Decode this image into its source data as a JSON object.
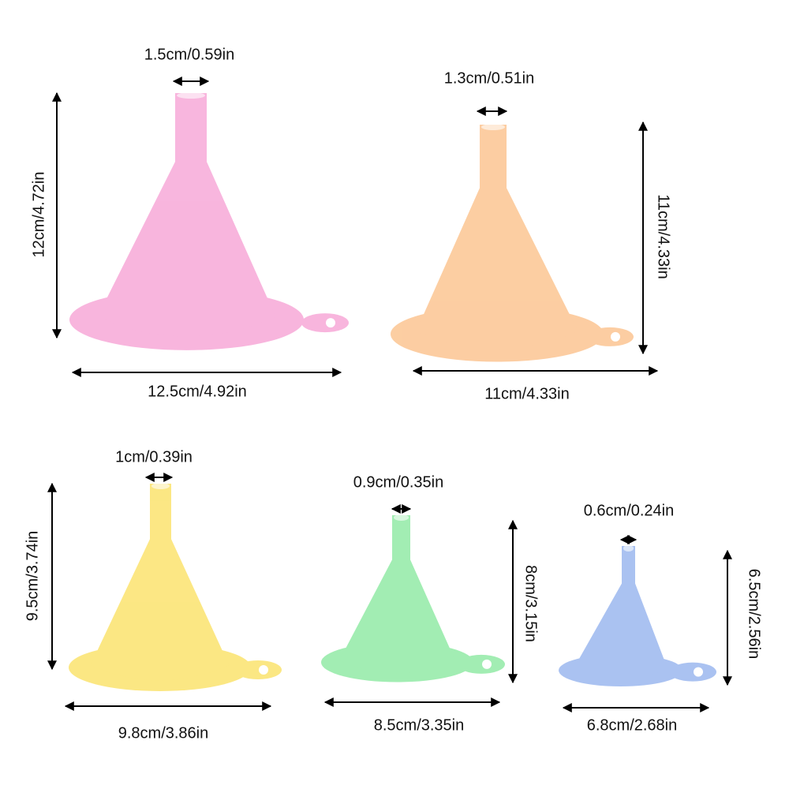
{
  "funnels": [
    {
      "spout": "1.5cm/0.59in",
      "height": "12cm/4.72in",
      "width": "12.5cm/4.92in"
    },
    {
      "spout": "1.3cm/0.51in",
      "height": "11cm/4.33in",
      "width": "11cm/4.33in"
    },
    {
      "spout": "1cm/0.39in",
      "height": "9.5cm/3.74in",
      "width": "9.8cm/3.86in"
    },
    {
      "spout": "0.9cm/0.35in",
      "height": "8cm/3.15in",
      "width": "8.5cm/3.35in"
    },
    {
      "spout": "0.6cm/0.24in",
      "height": "6.5cm/2.56in",
      "width": "6.8cm/2.68in"
    }
  ]
}
